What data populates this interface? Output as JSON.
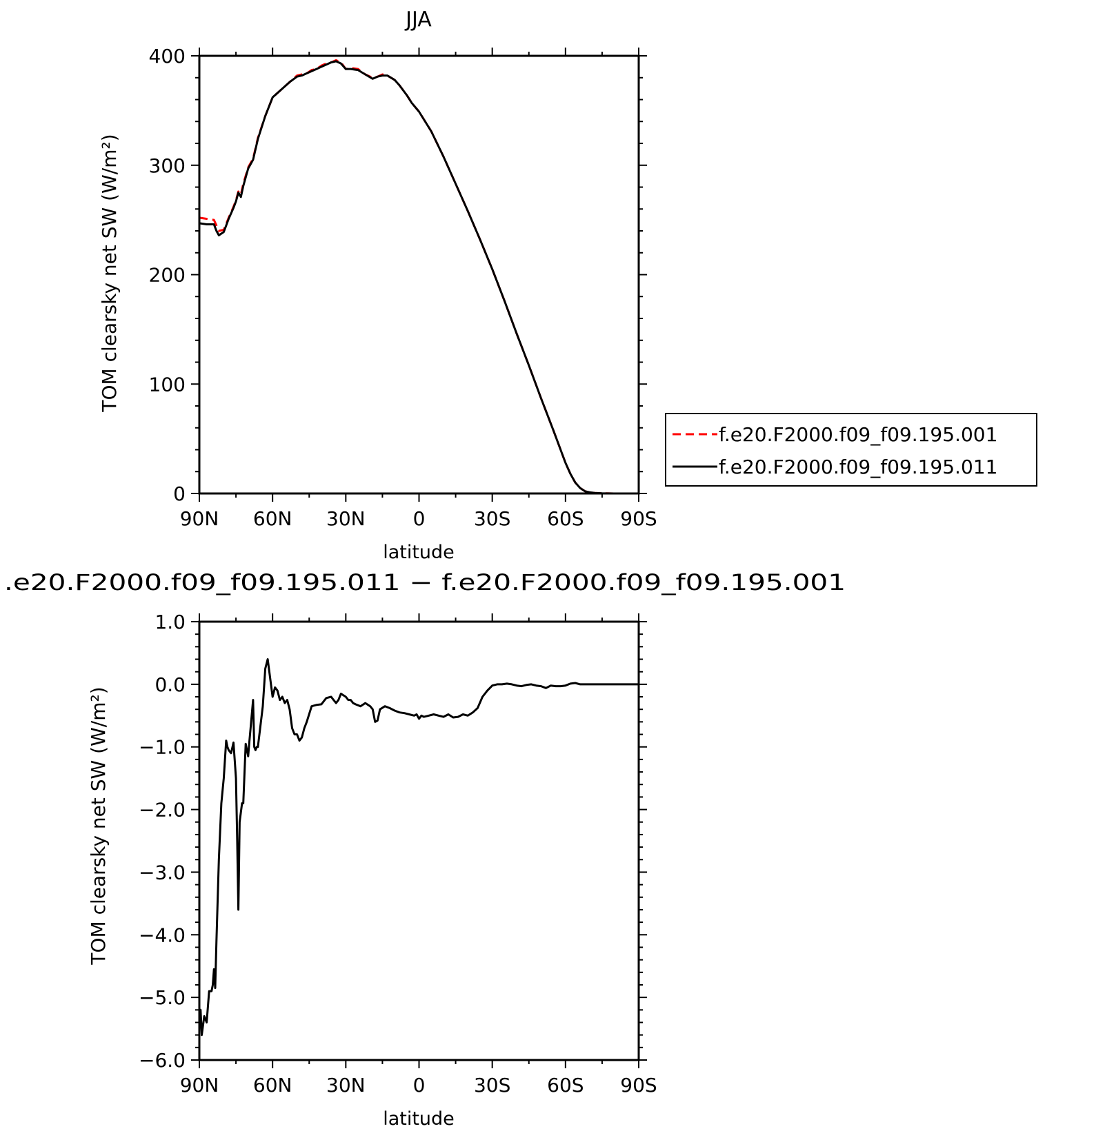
{
  "chart_data": [
    {
      "type": "line",
      "title": "JJA",
      "xlabel": "latitude",
      "ylabel": "TOM clearsky net SW (W/m²)",
      "xlim": [
        90,
        -90
      ],
      "ylim": [
        0,
        400
      ],
      "x_ticks": [
        90,
        60,
        30,
        0,
        -30,
        -60,
        -90
      ],
      "x_tick_labels": [
        "90N",
        "60N",
        "30N",
        "0",
        "30S",
        "60S",
        "90S"
      ],
      "y_ticks": [
        0,
        100,
        200,
        300,
        400
      ],
      "y_tick_labels": [
        "0",
        "100",
        "200",
        "300",
        "400"
      ],
      "legend_position": "outside-right",
      "series": [
        {
          "name": "f.e20.F2000.f09_f09.195.001",
          "color": "#ff0000",
          "line_style": "dashed",
          "x": [
            90,
            87,
            84,
            83,
            82,
            80,
            78,
            76,
            75,
            74,
            73,
            72,
            70,
            68,
            66,
            63,
            60,
            57,
            55,
            53,
            50,
            48,
            46,
            44,
            42,
            40,
            38,
            36,
            34,
            32,
            30,
            28,
            25,
            22,
            19,
            17,
            15,
            13,
            10,
            8,
            5,
            3,
            0,
            -5,
            -10,
            -15,
            -20,
            -25,
            -30,
            -35,
            -40,
            -45,
            -50,
            -55,
            -60,
            -62,
            -64,
            -66,
            -68,
            -70,
            -72,
            -75,
            -80,
            -85,
            -90
          ],
          "y": [
            252,
            251,
            250,
            245,
            240,
            241,
            252,
            262,
            268,
            276,
            273,
            283,
            298,
            306,
            325,
            345,
            362,
            368,
            372,
            376,
            382,
            383,
            384,
            387,
            388,
            391,
            393,
            394,
            396,
            394,
            388,
            389,
            388,
            383,
            380,
            381,
            383,
            382,
            378,
            373,
            364,
            357,
            349,
            331,
            308,
            283,
            258,
            232,
            205,
            176,
            146,
            117,
            87,
            58,
            28,
            18,
            10,
            5,
            2,
            1,
            0.5,
            0.2,
            0,
            0,
            0
          ]
        },
        {
          "name": "f.e20.F2000.f09_f09.195.011",
          "color": "#000000",
          "line_style": "solid",
          "x": [
            90,
            87,
            84,
            83,
            82,
            80,
            78,
            76,
            75,
            74,
            73,
            72,
            70,
            68,
            66,
            63,
            60,
            57,
            55,
            53,
            50,
            48,
            46,
            44,
            42,
            40,
            38,
            36,
            34,
            32,
            30,
            28,
            25,
            22,
            19,
            17,
            15,
            13,
            10,
            8,
            5,
            3,
            0,
            -5,
            -10,
            -15,
            -20,
            -25,
            -30,
            -35,
            -40,
            -45,
            -50,
            -55,
            -60,
            -62,
            -64,
            -66,
            -68,
            -70,
            -72,
            -75,
            -80,
            -85,
            -90
          ],
          "y": [
            247,
            246,
            246,
            240,
            236,
            239,
            251,
            261,
            267,
            275,
            271,
            281,
            297,
            305,
            324,
            345,
            362,
            368,
            372,
            376,
            381,
            382,
            384,
            386,
            388,
            390,
            392,
            394,
            395,
            393,
            388,
            388,
            387,
            383,
            379,
            381,
            382,
            382,
            378,
            373,
            364,
            357,
            349,
            331,
            308,
            283,
            258,
            232,
            205,
            176,
            146,
            117,
            87,
            58,
            28,
            18,
            10,
            5,
            2,
            1,
            0.5,
            0.2,
            0,
            0,
            0
          ]
        }
      ]
    },
    {
      "type": "line",
      "title": ".e20.F2000.f09_f09.195.011 − f.e20.F2000.f09_f09.195.001",
      "xlabel": "latitude",
      "ylabel": "TOM clearsky net SW (W/m²)",
      "xlim": [
        90,
        -90
      ],
      "ylim": [
        -6.0,
        1.0
      ],
      "x_ticks": [
        90,
        60,
        30,
        0,
        -30,
        -60,
        -90
      ],
      "x_tick_labels": [
        "90N",
        "60N",
        "30N",
        "0",
        "30S",
        "60S",
        "90S"
      ],
      "y_ticks": [
        1.0,
        0.0,
        -1.0,
        -2.0,
        -3.0,
        -4.0,
        -5.0,
        -6.0
      ],
      "y_tick_labels": [
        "1.0",
        "0.0",
        "−1.0",
        "−2.0",
        "−3.0",
        "−4.0",
        "−5.0",
        "−6.0"
      ],
      "series": [
        {
          "color": "#000000",
          "line_style": "solid",
          "x": [
            90,
            89.5,
            89,
            88,
            87,
            86,
            85,
            84.5,
            84,
            83.5,
            83,
            82,
            81,
            80,
            79,
            78.5,
            78,
            77,
            76,
            75,
            74.5,
            74,
            73.5,
            72.5,
            72,
            71,
            70,
            69.5,
            69,
            68,
            67.5,
            67,
            66.5,
            66,
            64,
            63,
            62,
            60,
            59,
            58,
            57,
            56,
            55,
            54,
            53,
            52,
            51,
            50,
            49,
            48,
            47,
            46,
            44,
            42,
            40,
            38,
            36,
            35,
            34,
            33,
            32,
            30,
            29,
            28,
            27,
            26,
            24,
            22,
            20,
            19,
            18,
            17,
            16,
            14,
            12,
            10,
            8,
            6,
            4,
            2,
            1,
            0,
            -1,
            -2,
            -4,
            -6,
            -8,
            -10,
            -12,
            -14,
            -16,
            -18,
            -20,
            -22,
            -24,
            -26,
            -28,
            -30,
            -32,
            -34,
            -36,
            -38,
            -40,
            -42,
            -44,
            -46,
            -48,
            -50,
            -52,
            -54,
            -56,
            -58,
            -60,
            -62,
            -64,
            -66,
            -68,
            -70,
            -72,
            -75,
            -80,
            -85,
            -90
          ],
          "y": [
            -5.4,
            -5.2,
            -5.6,
            -5.3,
            -5.4,
            -4.9,
            -4.9,
            -4.8,
            -4.55,
            -4.85,
            -4.1,
            -2.8,
            -1.9,
            -1.5,
            -0.9,
            -1.0,
            -1.05,
            -1.1,
            -0.93,
            -1.5,
            -2.5,
            -3.6,
            -2.2,
            -1.9,
            -1.9,
            -0.95,
            -1.15,
            -0.92,
            -0.7,
            -0.25,
            -1.0,
            -1.05,
            -1.0,
            -1.0,
            -0.35,
            0.25,
            0.4,
            -0.2,
            -0.05,
            -0.1,
            -0.25,
            -0.2,
            -0.3,
            -0.25,
            -0.4,
            -0.7,
            -0.8,
            -0.8,
            -0.9,
            -0.85,
            -0.7,
            -0.6,
            -0.35,
            -0.33,
            -0.32,
            -0.22,
            -0.2,
            -0.25,
            -0.3,
            -0.25,
            -0.15,
            -0.2,
            -0.25,
            -0.25,
            -0.3,
            -0.32,
            -0.35,
            -0.3,
            -0.35,
            -0.4,
            -0.6,
            -0.58,
            -0.4,
            -0.35,
            -0.38,
            -0.42,
            -0.45,
            -0.46,
            -0.48,
            -0.5,
            -0.48,
            -0.55,
            -0.5,
            -0.52,
            -0.5,
            -0.48,
            -0.5,
            -0.52,
            -0.48,
            -0.53,
            -0.52,
            -0.48,
            -0.5,
            -0.45,
            -0.38,
            -0.2,
            -0.1,
            -0.02,
            0.0,
            0.0,
            0.01,
            0.0,
            -0.02,
            -0.03,
            -0.01,
            0.0,
            -0.02,
            -0.03,
            -0.06,
            -0.02,
            -0.03,
            -0.03,
            -0.02,
            0.01,
            0.02,
            0.0,
            0.0,
            0.0,
            0.0,
            0.0,
            0.0,
            0.0,
            0.0
          ]
        }
      ]
    }
  ]
}
